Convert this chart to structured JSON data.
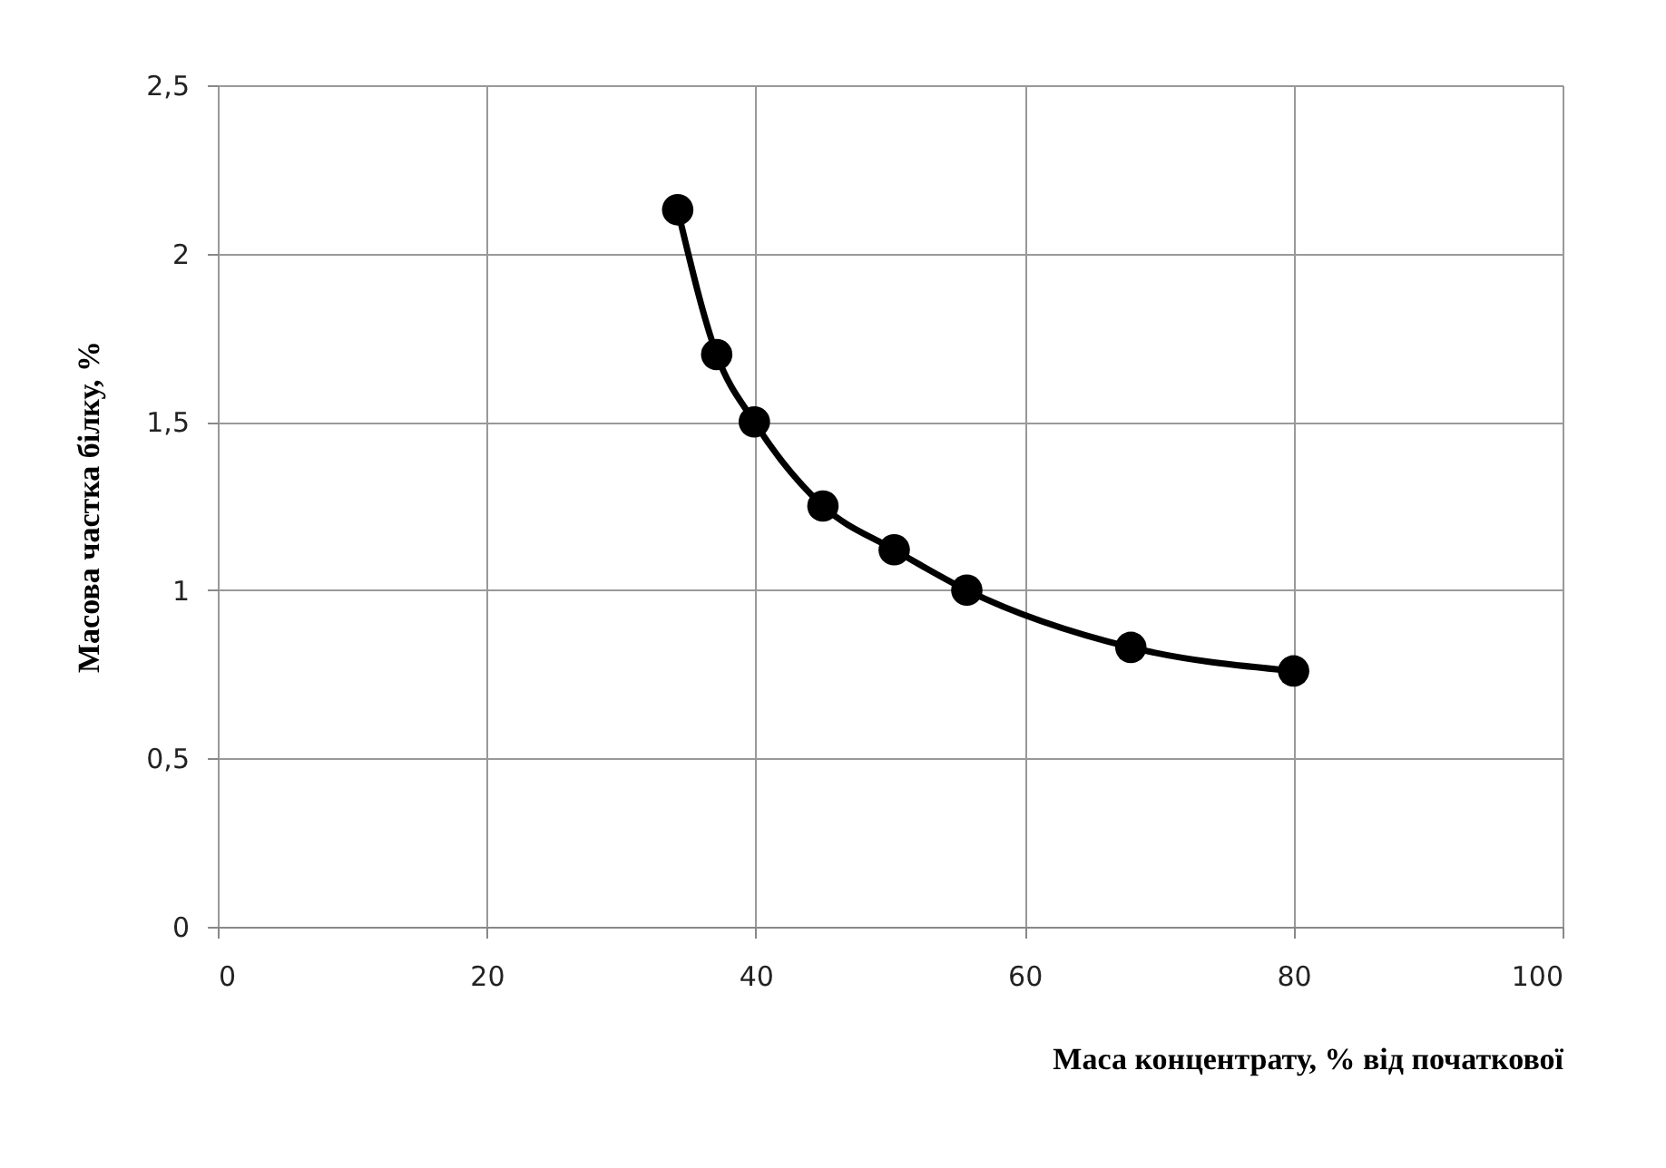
{
  "chart_data": {
    "type": "line",
    "xlabel": "Маса концентрату, % від початкової",
    "ylabel": "Масова частка білку, %",
    "x": [
      34.2,
      37.1,
      39.9,
      45,
      50.3,
      55.7,
      67.9,
      80
    ],
    "series": [
      {
        "color": "#000000",
        "values": [
          2.13,
          1.7,
          1.5,
          1.25,
          1.12,
          1.0,
          0.83,
          0.76
        ]
      }
    ],
    "xlim": [
      0,
      100
    ],
    "xticks": [
      0,
      20,
      40,
      60,
      80,
      100
    ],
    "ylim": [
      0,
      2.5
    ],
    "yticks": [
      0,
      {
        "value": 0.5,
        "label": "0,5"
      },
      1,
      {
        "value": 1.5,
        "label": "1,5"
      },
      2,
      {
        "value": 2.5,
        "label": "2,5"
      }
    ],
    "grid": true,
    "marker": "circle",
    "line_style": "solid"
  }
}
